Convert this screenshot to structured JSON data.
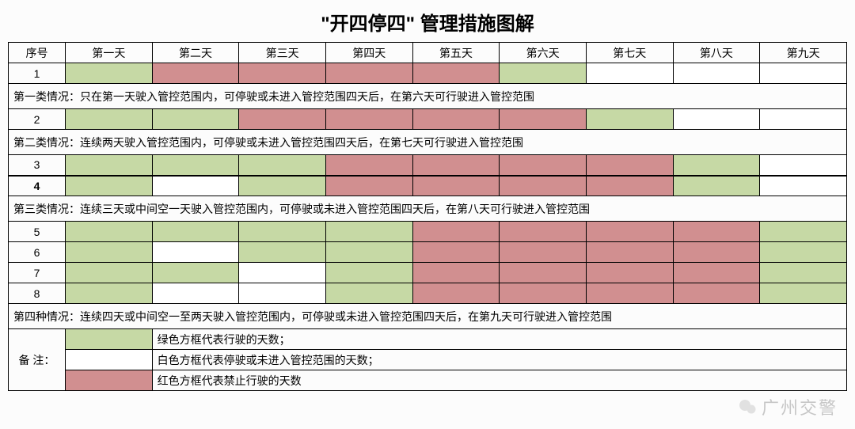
{
  "title": "\"开四停四\" 管理措施图解",
  "header": {
    "seq": "序号",
    "days": [
      "第一天",
      "第二天",
      "第三天",
      "第四天",
      "第五天",
      "第六天",
      "第七天",
      "第八天",
      "第九天"
    ]
  },
  "colors": {
    "green": "#c6d9a5",
    "red": "#d18f90",
    "white": "#ffffff",
    "border": "#000000"
  },
  "rows": [
    {
      "type": "data",
      "seq": "1",
      "cells": [
        "green",
        "red",
        "red",
        "red",
        "red",
        "green",
        "white",
        "white",
        "white"
      ]
    },
    {
      "type": "note",
      "text": "第一类情况：只在第一天驶入管控范围内，可停驶或未进入管控范围四天后，在第六天可行驶进入管控范围"
    },
    {
      "type": "data",
      "seq": "2",
      "cells": [
        "green",
        "green",
        "red",
        "red",
        "red",
        "red",
        "green",
        "white",
        "white"
      ]
    },
    {
      "type": "note",
      "text": "第二类情况：连续两天驶入管控范围内，可停驶或未进入管控范围四天后，在第七天可行驶进入管控范围"
    },
    {
      "type": "data",
      "seq": "3",
      "cells": [
        "green",
        "green",
        "green",
        "red",
        "red",
        "red",
        "red",
        "green",
        "white"
      ]
    },
    {
      "type": "data",
      "seq": "4",
      "bold": true,
      "thick": true,
      "cells": [
        "green",
        "white",
        "green",
        "red",
        "red",
        "red",
        "red",
        "green",
        "white"
      ]
    },
    {
      "type": "note",
      "text": "第三类情况：连续三天或中间空一天驶入管控范围内，可停驶或未进入管控范围四天后，在第八天可行驶进入管控范围"
    },
    {
      "type": "data",
      "seq": "5",
      "cells": [
        "green",
        "green",
        "green",
        "green",
        "red",
        "red",
        "red",
        "red",
        "green"
      ]
    },
    {
      "type": "data",
      "seq": "6",
      "cells": [
        "green",
        "white",
        "green",
        "green",
        "red",
        "red",
        "red",
        "red",
        "green"
      ]
    },
    {
      "type": "data",
      "seq": "7",
      "cells": [
        "green",
        "green",
        "white",
        "green",
        "red",
        "red",
        "red",
        "red",
        "green"
      ]
    },
    {
      "type": "data",
      "seq": "8",
      "cells": [
        "green",
        "white",
        "white",
        "green",
        "red",
        "red",
        "red",
        "red",
        "green"
      ]
    },
    {
      "type": "note",
      "text": "第四种情况：连续四天或中间空一至两天驶入管控范围内，可停驶或未进入管控范围四天后，在第九天可行驶进入管控范围"
    }
  ],
  "legend": {
    "label": "备  注：",
    "items": [
      {
        "color": "green",
        "text": "绿色方框代表行驶的天数；"
      },
      {
        "color": "white",
        "text": "白色方框代表停驶或未进入管控范围的天数；"
      },
      {
        "color": "red",
        "text": "红色方框代表禁止行驶的天数"
      }
    ]
  },
  "watermark": "广州交警"
}
